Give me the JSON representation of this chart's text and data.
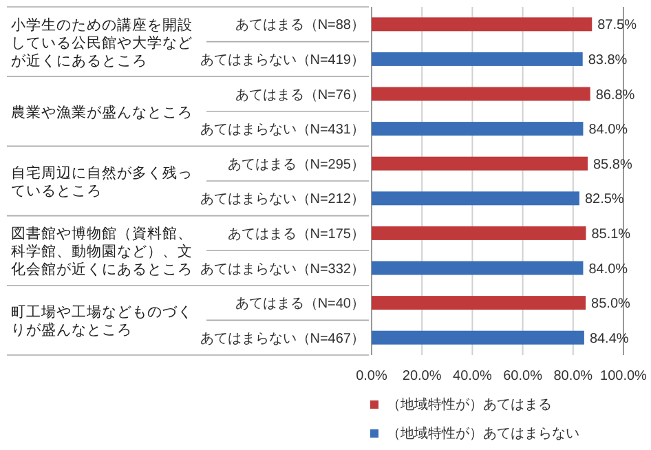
{
  "chart_data": {
    "type": "bar",
    "orientation": "horizontal",
    "categories": [
      "あてはまる（N=88）",
      "あてはまらない（N=419）",
      "あてはまる（N=76）",
      "あてはまらない（N=431）",
      "あてはまる（N=295）",
      "あてはまらない（N=212）",
      "あてはまる（N=175）",
      "あてはまらない（N=332）",
      "あてはまる（N=40）",
      "あてはまらない（N=467）"
    ],
    "series": [
      {
        "name": "（地域特性が）あてはまる",
        "color": "#c0393b",
        "values": [
          87.5,
          null,
          86.8,
          null,
          85.8,
          null,
          85.1,
          null,
          85.0,
          null
        ],
        "value_labels": [
          "87.5%",
          null,
          "86.8%",
          null,
          "85.8%",
          null,
          "85.1%",
          null,
          "85.0%",
          null
        ]
      },
      {
        "name": "（地域特性が）あてはまらない",
        "color": "#3a6fb8",
        "values": [
          null,
          83.8,
          null,
          84.0,
          null,
          82.5,
          null,
          84.0,
          null,
          84.4
        ],
        "value_labels": [
          null,
          "83.8%",
          null,
          "84.0%",
          null,
          "82.5%",
          null,
          "84.0%",
          null,
          "84.4%"
        ]
      }
    ],
    "annotations": [
      "小学生のための講座を開設している公民館や大学などが近くにあるところ",
      "農業や漁業が盛んなところ",
      "自宅周辺に自然が多く残っているところ",
      "図書館や博物館（資料館、科学館、動物園など）、文化会館が近くにあるところ",
      "町工場や工場などものづくりが盛んなところ"
    ],
    "xlim": [
      0,
      100
    ],
    "xticks": [
      {
        "value": 0,
        "label": "0.0%"
      },
      {
        "value": 20,
        "label": "20.0%"
      },
      {
        "value": 40,
        "label": "40.0%"
      },
      {
        "value": 60,
        "label": "60.0%"
      },
      {
        "value": 80,
        "label": "80.0%"
      },
      {
        "value": 100,
        "label": "100.0%"
      }
    ],
    "grid": "x",
    "legend": "bottom"
  }
}
